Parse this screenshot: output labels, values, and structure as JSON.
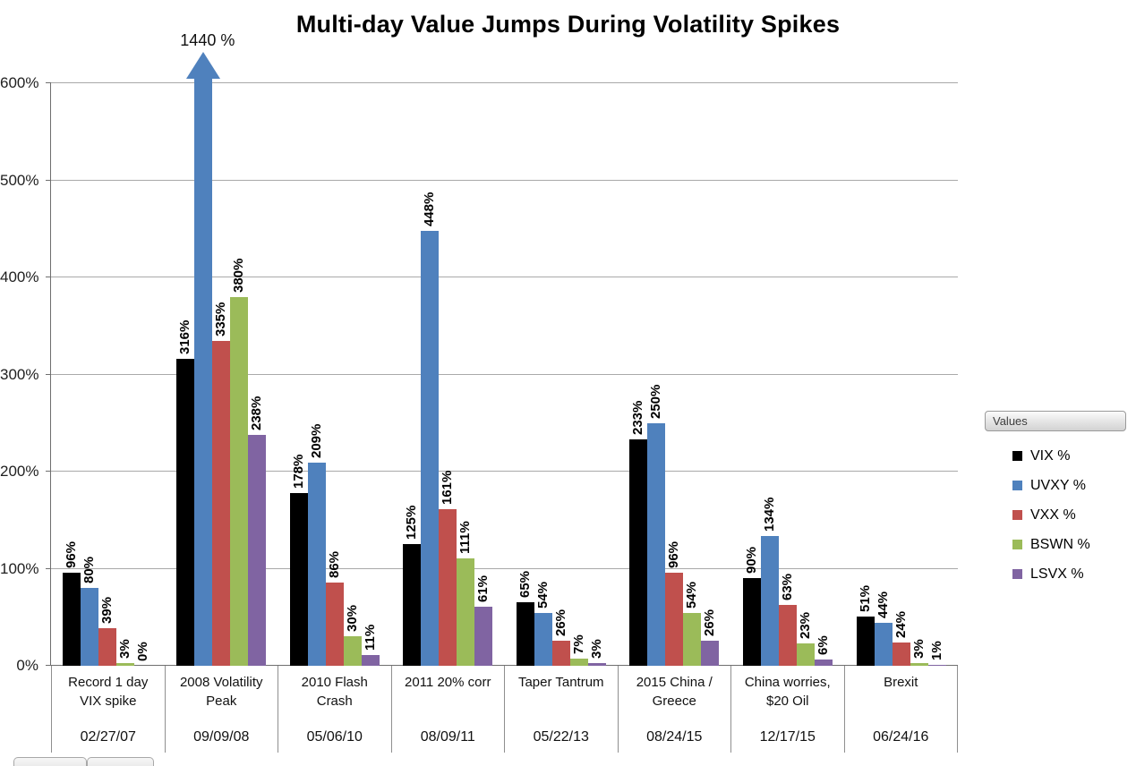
{
  "chart_data": {
    "type": "bar",
    "title": "Multi-day Value Jumps During Volatility Spikes",
    "xlabel": "",
    "ylabel": "",
    "ylim": [
      0,
      600
    ],
    "yticks": [
      "0%",
      "100%",
      "200%",
      "300%",
      "400%",
      "500%",
      "600%"
    ],
    "grid": true,
    "legend_position": "right",
    "legend_header": "Values",
    "categories": [
      {
        "name": "Record 1 day VIX spike",
        "date": "02/27/07"
      },
      {
        "name": "2008 Volatility Peak",
        "date": "09/09/08"
      },
      {
        "name": "2010 Flash Crash",
        "date": "05/06/10"
      },
      {
        "name": "2011 20% corr",
        "date": "08/09/11"
      },
      {
        "name": "Taper Tantrum",
        "date": "05/22/13"
      },
      {
        "name": "2015 China / Greece",
        "date": "08/24/15"
      },
      {
        "name": "China worries, $20 Oil",
        "date": "12/17/15"
      },
      {
        "name": "Brexit",
        "date": "06/24/16"
      }
    ],
    "series": [
      {
        "name": "VIX %",
        "color": "#000000",
        "values": [
          96,
          316,
          178,
          125,
          65,
          233,
          90,
          51
        ]
      },
      {
        "name": "UVXY %",
        "color": "#4F81BD",
        "values": [
          80,
          1440,
          209,
          448,
          54,
          250,
          134,
          44
        ]
      },
      {
        "name": "VXX %",
        "color": "#C0504D",
        "values": [
          39,
          335,
          86,
          161,
          26,
          96,
          63,
          24
        ]
      },
      {
        "name": "BSWN %",
        "color": "#9BBB59",
        "values": [
          3,
          380,
          30,
          111,
          7,
          54,
          23,
          3
        ]
      },
      {
        "name": "LSVX %",
        "color": "#8064A2",
        "values": [
          0,
          238,
          11,
          61,
          3,
          26,
          6,
          1
        ]
      }
    ],
    "data_label_format": "{value}%",
    "clipped_bar": {
      "series_index": 1,
      "category_index": 1,
      "label": "1440 %"
    }
  }
}
